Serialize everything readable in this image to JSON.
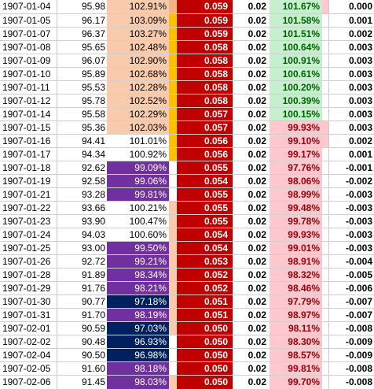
{
  "rows": [
    {
      "date": "1907-01-04",
      "val": "95.98",
      "pct": "102.91%",
      "red": "0.059",
      "c": "0.02",
      "pct2": "101.67%",
      "last": "0.000",
      "pctBg": "#f8cbad",
      "pctFg": "#000000",
      "bar1": "#f4b183",
      "p2Bg": "#c6efce",
      "p2Fg": "#006100",
      "bar2": "#ffc7ce"
    },
    {
      "date": "1907-01-05",
      "val": "96.17",
      "pct": "103.09%",
      "red": "0.059",
      "c": "0.02",
      "pct2": "101.58%",
      "last": "0.001",
      "pctBg": "#f8cbad",
      "pctFg": "#000000",
      "bar1": "#ffc000",
      "p2Bg": "#c6efce",
      "p2Fg": "#006100",
      "bar2": "#ffffff"
    },
    {
      "date": "1907-01-07",
      "val": "96.37",
      "pct": "103.27%",
      "red": "0.059",
      "c": "0.02",
      "pct2": "101.51%",
      "last": "0.002",
      "pctBg": "#f8cbad",
      "pctFg": "#000000",
      "bar1": "#ffc000",
      "p2Bg": "#c6efce",
      "p2Fg": "#006100",
      "bar2": "#ffffff"
    },
    {
      "date": "1907-01-08",
      "val": "95.65",
      "pct": "102.48%",
      "red": "0.058",
      "c": "0.02",
      "pct2": "100.64%",
      "last": "0.003",
      "pctBg": "#f8cbad",
      "pctFg": "#000000",
      "bar1": "#ffc000",
      "p2Bg": "#c6efce",
      "p2Fg": "#006100",
      "bar2": "#ffffff"
    },
    {
      "date": "1907-01-09",
      "val": "96.07",
      "pct": "102.90%",
      "red": "0.058",
      "c": "0.02",
      "pct2": "100.91%",
      "last": "0.003",
      "pctBg": "#f8cbad",
      "pctFg": "#000000",
      "bar1": "#ffc000",
      "p2Bg": "#c6efce",
      "p2Fg": "#006100",
      "bar2": "#ffffff"
    },
    {
      "date": "1907-01-10",
      "val": "95.89",
      "pct": "102.68%",
      "red": "0.058",
      "c": "0.02",
      "pct2": "100.61%",
      "last": "0.003",
      "pctBg": "#f8cbad",
      "pctFg": "#000000",
      "bar1": "#ffc000",
      "p2Bg": "#c6efce",
      "p2Fg": "#006100",
      "bar2": "#ffffff"
    },
    {
      "date": "1907-01-11",
      "val": "95.53",
      "pct": "102.28%",
      "red": "0.058",
      "c": "0.02",
      "pct2": "100.20%",
      "last": "0.003",
      "pctBg": "#f8cbad",
      "pctFg": "#000000",
      "bar1": "#ffc000",
      "p2Bg": "#c6efce",
      "p2Fg": "#006100",
      "bar2": "#ffffff"
    },
    {
      "date": "1907-01-12",
      "val": "95.78",
      "pct": "102.52%",
      "red": "0.058",
      "c": "0.02",
      "pct2": "100.39%",
      "last": "0.003",
      "pctBg": "#f8cbad",
      "pctFg": "#000000",
      "bar1": "#ffc000",
      "p2Bg": "#c6efce",
      "p2Fg": "#006100",
      "bar2": "#ffffff"
    },
    {
      "date": "1907-01-14",
      "val": "95.58",
      "pct": "102.29%",
      "red": "0.057",
      "c": "0.02",
      "pct2": "100.15%",
      "last": "0.003",
      "pctBg": "#f8cbad",
      "pctFg": "#000000",
      "bar1": "#ffc000",
      "p2Bg": "#c6efce",
      "p2Fg": "#006100",
      "bar2": "#ffffff"
    },
    {
      "date": "1907-01-15",
      "val": "95.36",
      "pct": "102.03%",
      "red": "0.057",
      "c": "0.02",
      "pct2": "99.93%",
      "last": "0.003",
      "pctBg": "#f8cbad",
      "pctFg": "#000000",
      "bar1": "#ffc000",
      "p2Bg": "#ffc7ce",
      "p2Fg": "#9c0006",
      "bar2": "#ffc7ce"
    },
    {
      "date": "1907-01-16",
      "val": "94.41",
      "pct": "101.01%",
      "red": "0.056",
      "c": "0.02",
      "pct2": "99.10%",
      "last": "0.002",
      "pctBg": "#ffffff",
      "pctFg": "#000000",
      "bar1": "#ffc000",
      "p2Bg": "#ffc7ce",
      "p2Fg": "#9c0006",
      "bar2": "#ffc7ce"
    },
    {
      "date": "1907-01-17",
      "val": "94.34",
      "pct": "100.92%",
      "red": "0.056",
      "c": "0.02",
      "pct2": "99.17%",
      "last": "0.001",
      "pctBg": "#ffffff",
      "pctFg": "#000000",
      "bar1": "#ffc000",
      "p2Bg": "#ffc7ce",
      "p2Fg": "#9c0006",
      "bar2": "#ffffff"
    },
    {
      "date": "1907-01-18",
      "val": "92.62",
      "pct": "99.09%",
      "red": "0.055",
      "c": "0.02",
      "pct2": "97.76%",
      "last": "-0.001",
      "pctBg": "#7030a0",
      "pctFg": "#ffffff",
      "bar1": "#ffffff",
      "p2Bg": "#ffc7ce",
      "p2Fg": "#9c0006",
      "bar2": "#ffffff"
    },
    {
      "date": "1907-01-19",
      "val": "92.58",
      "pct": "99.06%",
      "red": "0.054",
      "c": "0.02",
      "pct2": "98.06%",
      "last": "-0.002",
      "pctBg": "#7030a0",
      "pctFg": "#ffffff",
      "bar1": "#ffffff",
      "p2Bg": "#ffc7ce",
      "p2Fg": "#9c0006",
      "bar2": "#ffffff"
    },
    {
      "date": "1907-01-21",
      "val": "93.28",
      "pct": "99.81%",
      "red": "0.055",
      "c": "0.02",
      "pct2": "98.99%",
      "last": "-0.003",
      "pctBg": "#7030a0",
      "pctFg": "#ffffff",
      "bar1": "#ffffff",
      "p2Bg": "#ffc7ce",
      "p2Fg": "#9c0006",
      "bar2": "#ffffff"
    },
    {
      "date": "1907-01-22",
      "val": "93.66",
      "pct": "100.21%",
      "red": "0.055",
      "c": "0.02",
      "pct2": "99.48%",
      "last": "-0.003",
      "pctBg": "#ffffff",
      "pctFg": "#000000",
      "bar1": "#f8cbad",
      "p2Bg": "#ffc7ce",
      "p2Fg": "#9c0006",
      "bar2": "#ffffff"
    },
    {
      "date": "1907-01-23",
      "val": "93.90",
      "pct": "100.47%",
      "red": "0.055",
      "c": "0.02",
      "pct2": "99.78%",
      "last": "-0.003",
      "pctBg": "#ffffff",
      "pctFg": "#000000",
      "bar1": "#f8cbad",
      "p2Bg": "#ffc7ce",
      "p2Fg": "#9c0006",
      "bar2": "#ffffff"
    },
    {
      "date": "1907-01-24",
      "val": "94.03",
      "pct": "100.60%",
      "red": "0.054",
      "c": "0.02",
      "pct2": "99.93%",
      "last": "-0.003",
      "pctBg": "#ffffff",
      "pctFg": "#000000",
      "bar1": "#f8cbad",
      "p2Bg": "#ffc7ce",
      "p2Fg": "#9c0006",
      "bar2": "#ffffff"
    },
    {
      "date": "1907-01-25",
      "val": "93.00",
      "pct": "99.50%",
      "red": "0.054",
      "c": "0.02",
      "pct2": "99.01%",
      "last": "-0.003",
      "pctBg": "#7030a0",
      "pctFg": "#ffffff",
      "bar1": "#f8cbad",
      "p2Bg": "#ffc7ce",
      "p2Fg": "#9c0006",
      "bar2": "#ffffff"
    },
    {
      "date": "1907-01-26",
      "val": "92.72",
      "pct": "99.21%",
      "red": "0.053",
      "c": "0.02",
      "pct2": "98.91%",
      "last": "-0.004",
      "pctBg": "#7030a0",
      "pctFg": "#ffffff",
      "bar1": "#f8cbad",
      "p2Bg": "#ffc7ce",
      "p2Fg": "#9c0006",
      "bar2": "#ffffff"
    },
    {
      "date": "1907-01-28",
      "val": "91.89",
      "pct": "98.34%",
      "red": "0.052",
      "c": "0.02",
      "pct2": "98.32%",
      "last": "-0.005",
      "pctBg": "#7030a0",
      "pctFg": "#ffffff",
      "bar1": "#f8cbad",
      "p2Bg": "#ffc7ce",
      "p2Fg": "#9c0006",
      "bar2": "#ffffff"
    },
    {
      "date": "1907-01-29",
      "val": "91.76",
      "pct": "98.21%",
      "red": "0.052",
      "c": "0.02",
      "pct2": "98.46%",
      "last": "-0.006",
      "pctBg": "#7030a0",
      "pctFg": "#ffffff",
      "bar1": "#f8cbad",
      "p2Bg": "#ffc7ce",
      "p2Fg": "#9c0006",
      "bar2": "#ffffff"
    },
    {
      "date": "1907-01-30",
      "val": "90.77",
      "pct": "97.18%",
      "red": "0.051",
      "c": "0.02",
      "pct2": "97.79%",
      "last": "-0.007",
      "pctBg": "#002060",
      "pctFg": "#ffffff",
      "bar1": "#f8cbad",
      "p2Bg": "#ffc7ce",
      "p2Fg": "#9c0006",
      "bar2": "#ffffff"
    },
    {
      "date": "1907-01-31",
      "val": "91.70",
      "pct": "98.19%",
      "red": "0.051",
      "c": "0.02",
      "pct2": "98.97%",
      "last": "-0.007",
      "pctBg": "#7030a0",
      "pctFg": "#ffffff",
      "bar1": "#f8cbad",
      "p2Bg": "#ffc7ce",
      "p2Fg": "#9c0006",
      "bar2": "#ffffff"
    },
    {
      "date": "1907-02-01",
      "val": "90.59",
      "pct": "97.03%",
      "red": "0.050",
      "c": "0.02",
      "pct2": "98.11%",
      "last": "-0.008",
      "pctBg": "#002060",
      "pctFg": "#ffffff",
      "bar1": "#f8cbad",
      "p2Bg": "#ffc7ce",
      "p2Fg": "#9c0006",
      "bar2": "#ffffff"
    },
    {
      "date": "1907-02-02",
      "val": "90.48",
      "pct": "96.93%",
      "red": "0.050",
      "c": "0.02",
      "pct2": "98.30%",
      "last": "-0.009",
      "pctBg": "#002060",
      "pctFg": "#ffffff",
      "bar1": "#ffffff",
      "p2Bg": "#ffc7ce",
      "p2Fg": "#9c0006",
      "bar2": "#ffffff"
    },
    {
      "date": "1907-02-04",
      "val": "90.50",
      "pct": "96.98%",
      "red": "0.050",
      "c": "0.02",
      "pct2": "98.57%",
      "last": "-0.009",
      "pctBg": "#002060",
      "pctFg": "#ffffff",
      "bar1": "#ffffff",
      "p2Bg": "#ffc7ce",
      "p2Fg": "#9c0006",
      "bar2": "#ffffff"
    },
    {
      "date": "1907-02-05",
      "val": "91.60",
      "pct": "98.18%",
      "red": "0.050",
      "c": "0.02",
      "pct2": "99.81%",
      "last": "-0.008",
      "pctBg": "#7030a0",
      "pctFg": "#ffffff",
      "bar1": "#ffffff",
      "p2Bg": "#ffc7ce",
      "p2Fg": "#9c0006",
      "bar2": "#ffffff"
    },
    {
      "date": "1907-02-06",
      "val": "91.45",
      "pct": "98.03%",
      "red": "0.050",
      "c": "0.02",
      "pct2": "99.70%",
      "last": "-0.008",
      "pctBg": "#7030a0",
      "pctFg": "#ffffff",
      "bar1": "#f8cbad",
      "p2Bg": "#ffc7ce",
      "p2Fg": "#9c0006",
      "bar2": "#ffffff"
    }
  ]
}
